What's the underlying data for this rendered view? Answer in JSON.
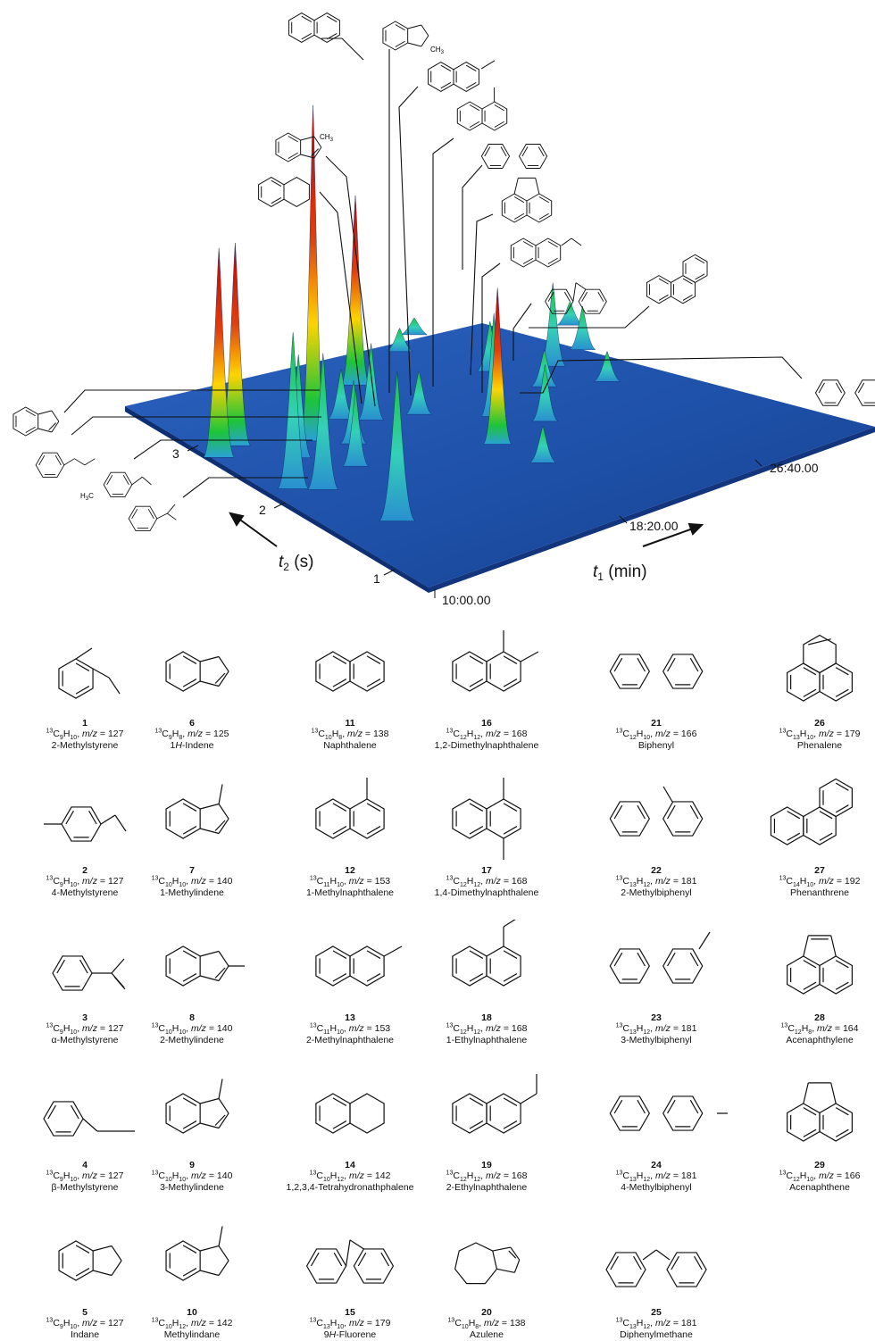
{
  "chart_data": {
    "type": "surface3d",
    "axes": {
      "t1": {
        "label_var": "t",
        "label_sub": "1",
        "label_unit": " (min)",
        "ticks": [
          "10:00.00",
          "18:20.00",
          "26:40.00"
        ]
      },
      "t2": {
        "label_var": "t",
        "label_sub": "2",
        "label_unit": " (s)",
        "ticks": [
          "1",
          "2",
          "3"
        ]
      }
    },
    "peaks": [
      {
        "t1": 0.12,
        "t2": 0.28,
        "h": 0.44,
        "w": 0.014,
        "v": "green"
      },
      {
        "t1": 0.02,
        "t2": 0.72,
        "h": 0.62,
        "w": 0.012,
        "v": "red"
      },
      {
        "t1": 0.07,
        "t2": 0.74,
        "h": 0.6,
        "w": 0.012,
        "v": "red"
      },
      {
        "t1": 0.05,
        "t2": 0.52,
        "h": 0.46,
        "w": 0.012,
        "v": "green"
      },
      {
        "t1": 0.09,
        "t2": 0.48,
        "h": 0.4,
        "w": 0.012,
        "v": "green"
      },
      {
        "t1": 0.13,
        "t2": 0.62,
        "h": 0.3,
        "w": 0.01,
        "v": "green"
      },
      {
        "t1": 0.19,
        "t2": 0.66,
        "h": 1.0,
        "w": 0.01,
        "v": "red"
      },
      {
        "t1": 0.19,
        "t2": 0.52,
        "h": 0.22,
        "w": 0.01,
        "v": "green"
      },
      {
        "t1": 0.24,
        "t2": 0.6,
        "h": 0.18,
        "w": 0.01,
        "v": "green"
      },
      {
        "t1": 0.28,
        "t2": 0.7,
        "h": 0.14,
        "w": 0.01,
        "v": "green"
      },
      {
        "t1": 0.32,
        "t2": 0.66,
        "h": 0.22,
        "w": 0.01,
        "v": "green"
      },
      {
        "t1": 0.38,
        "t2": 0.8,
        "h": 0.56,
        "w": 0.011,
        "v": "red"
      },
      {
        "t1": 0.4,
        "t2": 0.62,
        "h": 0.12,
        "w": 0.01,
        "v": "green"
      },
      {
        "t1": 0.44,
        "t2": 0.42,
        "h": 0.46,
        "w": 0.011,
        "v": "red"
      },
      {
        "t1": 0.46,
        "t2": 0.3,
        "h": 0.1,
        "w": 0.01,
        "v": "green"
      },
      {
        "t1": 0.5,
        "t2": 0.52,
        "h": 0.3,
        "w": 0.01,
        "v": "green"
      },
      {
        "t1": 0.56,
        "t2": 0.44,
        "h": 0.16,
        "w": 0.01,
        "v": "green"
      },
      {
        "t1": 0.6,
        "t2": 0.68,
        "h": 0.14,
        "w": 0.01,
        "v": "green"
      },
      {
        "t1": 0.64,
        "t2": 0.56,
        "h": 0.1,
        "w": 0.01,
        "v": "green"
      },
      {
        "t1": 0.7,
        "t2": 0.62,
        "h": 0.24,
        "w": 0.01,
        "v": "green"
      },
      {
        "t1": 0.74,
        "t2": 0.5,
        "h": 0.08,
        "w": 0.01,
        "v": "green"
      },
      {
        "t1": 0.78,
        "t2": 0.64,
        "h": 0.12,
        "w": 0.01,
        "v": "green"
      },
      {
        "t1": 0.82,
        "t2": 0.74,
        "h": 0.06,
        "w": 0.01,
        "v": "green"
      },
      {
        "t1": 0.52,
        "t2": 0.86,
        "h": 0.06,
        "w": 0.01,
        "v": "green"
      },
      {
        "t1": 0.58,
        "t2": 0.9,
        "h": 0.04,
        "w": 0.01,
        "v": "green"
      }
    ]
  },
  "compounds": [
    {
      "num": "1",
      "iso": "13",
      "formula": [
        [
          "C",
          "9"
        ],
        [
          "H",
          "10"
        ]
      ],
      "mz": "127",
      "name": "2-Methylstyrene"
    },
    {
      "num": "2",
      "iso": "13",
      "formula": [
        [
          "C",
          "9"
        ],
        [
          "H",
          "10"
        ]
      ],
      "mz": "127",
      "name": "4-Methylstyrene"
    },
    {
      "num": "3",
      "iso": "13",
      "formula": [
        [
          "C",
          "9"
        ],
        [
          "H",
          "10"
        ]
      ],
      "mz": "127",
      "name": "α-Methylstyrene"
    },
    {
      "num": "4",
      "iso": "13",
      "formula": [
        [
          "C",
          "9"
        ],
        [
          "H",
          "10"
        ]
      ],
      "mz": "127",
      "name": "β-Methylstyrene"
    },
    {
      "num": "5",
      "iso": "13",
      "formula": [
        [
          "C",
          "9"
        ],
        [
          "H",
          "10"
        ]
      ],
      "mz": "127",
      "name": "Indane"
    },
    {
      "num": "6",
      "iso": "13",
      "formula": [
        [
          "C",
          "9"
        ],
        [
          "H",
          "8"
        ]
      ],
      "mz": "125",
      "name_pre": "1",
      "name_it": "H",
      "name": "-Indene"
    },
    {
      "num": "7",
      "iso": "13",
      "formula": [
        [
          "C",
          "10"
        ],
        [
          "H",
          "10"
        ]
      ],
      "mz": "140",
      "name": "1-Methylindene"
    },
    {
      "num": "8",
      "iso": "13",
      "formula": [
        [
          "C",
          "10"
        ],
        [
          "H",
          "10"
        ]
      ],
      "mz": "140",
      "name": "2-Methylindene"
    },
    {
      "num": "9",
      "iso": "13",
      "formula": [
        [
          "C",
          "10"
        ],
        [
          "H",
          "10"
        ]
      ],
      "mz": "140",
      "name": "3-Methylindene"
    },
    {
      "num": "10",
      "iso": "13",
      "formula": [
        [
          "C",
          "10"
        ],
        [
          "H",
          "12"
        ]
      ],
      "mz": "142",
      "name": "Methylindane"
    },
    {
      "num": "11",
      "iso": "13",
      "formula": [
        [
          "C",
          "10"
        ],
        [
          "H",
          "8"
        ]
      ],
      "mz": "138",
      "name": "Naphthalene"
    },
    {
      "num": "12",
      "iso": "13",
      "formula": [
        [
          "C",
          "11"
        ],
        [
          "H",
          "10"
        ]
      ],
      "mz": "153",
      "name": "1-Methylnaphthalene"
    },
    {
      "num": "13",
      "iso": "13",
      "formula": [
        [
          "C",
          "11"
        ],
        [
          "H",
          "10"
        ]
      ],
      "mz": "153",
      "name": "2-Methylnaphthalene"
    },
    {
      "num": "14",
      "iso": "13",
      "formula": [
        [
          "C",
          "10"
        ],
        [
          "H",
          "12"
        ]
      ],
      "mz": "142",
      "name": "1,2,3,4-Tetrahydronathphalene"
    },
    {
      "num": "15",
      "iso": "13",
      "formula": [
        [
          "C",
          "13"
        ],
        [
          "H",
          "10"
        ]
      ],
      "mz": "179",
      "name_pre": "9",
      "name_it": "H",
      "name": "-Fluorene"
    },
    {
      "num": "16",
      "iso": "13",
      "formula": [
        [
          "C",
          "12"
        ],
        [
          "H",
          "12"
        ]
      ],
      "mz": "168",
      "name": "1,2-Dimethylnaphthalene"
    },
    {
      "num": "17",
      "iso": "13",
      "formula": [
        [
          "C",
          "12"
        ],
        [
          "H",
          "12"
        ]
      ],
      "mz": "168",
      "name": "1,4-Dimethylnaphthalene"
    },
    {
      "num": "18",
      "iso": "13",
      "formula": [
        [
          "C",
          "12"
        ],
        [
          "H",
          "12"
        ]
      ],
      "mz": "168",
      "name": "1-Ethylnaphthalene"
    },
    {
      "num": "19",
      "iso": "13",
      "formula": [
        [
          "C",
          "12"
        ],
        [
          "H",
          "12"
        ]
      ],
      "mz": "168",
      "name": "2-Ethylnaphthalene"
    },
    {
      "num": "20",
      "iso": "13",
      "formula": [
        [
          "C",
          "10"
        ],
        [
          "H",
          "8"
        ]
      ],
      "mz": "138",
      "name": "Azulene"
    },
    {
      "num": "21",
      "iso": "13",
      "formula": [
        [
          "C",
          "12"
        ],
        [
          "H",
          "10"
        ]
      ],
      "mz": "166",
      "name": "Biphenyl"
    },
    {
      "num": "22",
      "iso": "13",
      "formula": [
        [
          "C",
          "13"
        ],
        [
          "H",
          "12"
        ]
      ],
      "mz": "181",
      "name": "2-Methylbiphenyl"
    },
    {
      "num": "23",
      "iso": "13",
      "formula": [
        [
          "C",
          "13"
        ],
        [
          "H",
          "12"
        ]
      ],
      "mz": "181",
      "name": "3-Methylbiphenyl"
    },
    {
      "num": "24",
      "iso": "13",
      "formula": [
        [
          "C",
          "13"
        ],
        [
          "H",
          "12"
        ]
      ],
      "mz": "181",
      "name": "4-Methylbiphenyl"
    },
    {
      "num": "25",
      "iso": "13",
      "formula": [
        [
          "C",
          "13"
        ],
        [
          "H",
          "12"
        ]
      ],
      "mz": "181",
      "name": "Diphenylmethane"
    },
    {
      "num": "26",
      "iso": "13",
      "formula": [
        [
          "C",
          "13"
        ],
        [
          "H",
          "10"
        ]
      ],
      "mz": "179",
      "name": "Phenalene"
    },
    {
      "num": "27",
      "iso": "13",
      "formula": [
        [
          "C",
          "14"
        ],
        [
          "H",
          "10"
        ]
      ],
      "mz": "192",
      "name": "Phenanthrene"
    },
    {
      "num": "28",
      "iso": "13",
      "formula": [
        [
          "C",
          "12"
        ],
        [
          "H",
          "8"
        ]
      ],
      "mz": "164",
      "name": "Acenaphthylene"
    },
    {
      "num": "29",
      "iso": "13",
      "formula": [
        [
          "C",
          "12"
        ],
        [
          "H",
          "10"
        ]
      ],
      "mz": "166",
      "name": "Acenaphthene"
    }
  ],
  "labels": {
    "mz_prefix": "m/z",
    "mz_eq": " = ",
    "ch3": "CH",
    "ch3_sub": "3",
    "h3c": "H",
    "h3c_sub": "3",
    "h3c_c": "C"
  },
  "colors": {
    "surface": "#1d4fa6",
    "surface_edge": "#0f2f73",
    "peak_red": "#d81414",
    "peak_yellow": "#ffd400",
    "peak_green": "#1cc43a",
    "peak_cyan": "#38d0d0"
  }
}
